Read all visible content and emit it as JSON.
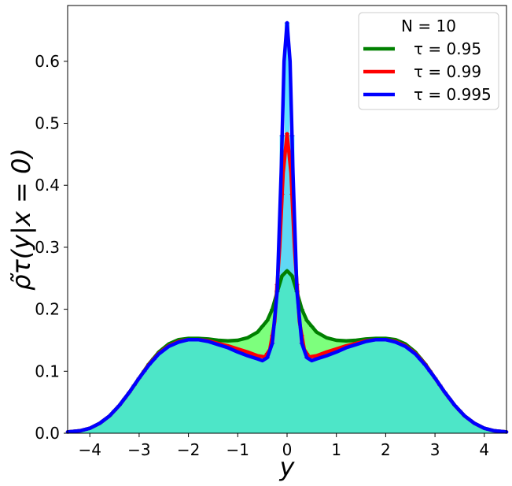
{
  "chart_data": {
    "type": "line",
    "xlabel": "y",
    "ylabel": "ρ̃τ(y|x = 0)",
    "xlim": [
      -4.45,
      4.45
    ],
    "ylim": [
      0.0,
      0.69
    ],
    "xticks": [
      "−4",
      "−3",
      "−2",
      "−1",
      "0",
      "1",
      "2",
      "3",
      "4"
    ],
    "xtick_values": [
      -4,
      -3,
      -2,
      -1,
      0,
      1,
      2,
      3,
      4
    ],
    "yticks": [
      "0.0",
      "0.1",
      "0.2",
      "0.3",
      "0.4",
      "0.5",
      "0.6"
    ],
    "ytick_values": [
      0.0,
      0.1,
      0.2,
      0.3,
      0.4,
      0.5,
      0.6
    ],
    "grid": false,
    "legend": {
      "title": "N = 10",
      "placement": "top-right",
      "entries": [
        {
          "label": "τ = 0.95",
          "color": "#008000"
        },
        {
          "label": "τ = 0.99",
          "color": "#ff0000"
        },
        {
          "label": "τ = 0.995",
          "color": "#0000ff"
        }
      ]
    },
    "series": [
      {
        "name": "τ = 0.95",
        "color": "#008000",
        "x": [
          -4.45,
          -4.2,
          -4.0,
          -3.8,
          -3.6,
          -3.4,
          -3.2,
          -3.0,
          -2.8,
          -2.6,
          -2.4,
          -2.2,
          -2.0,
          -1.8,
          -1.6,
          -1.4,
          -1.2,
          -1.0,
          -0.8,
          -0.6,
          -0.4,
          -0.3,
          -0.2,
          -0.1,
          0.0,
          0.1,
          0.2,
          0.3,
          0.4,
          0.6,
          0.8,
          1.0,
          1.2,
          1.4,
          1.6,
          1.8,
          2.0,
          2.2,
          2.4,
          2.6,
          2.8,
          3.0,
          3.2,
          3.4,
          3.6,
          3.8,
          4.0,
          4.2,
          4.45
        ],
        "y": [
          0.002,
          0.004,
          0.008,
          0.016,
          0.028,
          0.045,
          0.066,
          0.089,
          0.112,
          0.131,
          0.144,
          0.151,
          0.153,
          0.153,
          0.152,
          0.15,
          0.149,
          0.15,
          0.154,
          0.163,
          0.182,
          0.2,
          0.228,
          0.254,
          0.262,
          0.254,
          0.228,
          0.2,
          0.182,
          0.163,
          0.154,
          0.15,
          0.149,
          0.15,
          0.152,
          0.153,
          0.153,
          0.151,
          0.144,
          0.131,
          0.112,
          0.089,
          0.066,
          0.045,
          0.028,
          0.016,
          0.008,
          0.004,
          0.002
        ]
      },
      {
        "name": "τ = 0.99",
        "color": "#ff0000",
        "x": [
          -4.45,
          -4.2,
          -4.0,
          -3.8,
          -3.6,
          -3.4,
          -3.2,
          -3.0,
          -2.8,
          -2.6,
          -2.4,
          -2.2,
          -2.0,
          -1.8,
          -1.6,
          -1.4,
          -1.2,
          -1.0,
          -0.8,
          -0.6,
          -0.45,
          -0.35,
          -0.25,
          -0.15,
          -0.08,
          0.0,
          0.08,
          0.15,
          0.25,
          0.35,
          0.45,
          0.6,
          0.8,
          1.0,
          1.2,
          1.4,
          1.6,
          1.8,
          2.0,
          2.2,
          2.4,
          2.6,
          2.8,
          3.0,
          3.2,
          3.4,
          3.6,
          3.8,
          4.0,
          4.2,
          4.45
        ],
        "y": [
          0.002,
          0.004,
          0.008,
          0.016,
          0.028,
          0.045,
          0.066,
          0.089,
          0.111,
          0.129,
          0.141,
          0.148,
          0.151,
          0.151,
          0.149,
          0.145,
          0.141,
          0.136,
          0.131,
          0.125,
          0.123,
          0.135,
          0.18,
          0.3,
          0.42,
          0.483,
          0.42,
          0.3,
          0.18,
          0.135,
          0.123,
          0.125,
          0.131,
          0.136,
          0.141,
          0.145,
          0.149,
          0.151,
          0.151,
          0.148,
          0.141,
          0.129,
          0.111,
          0.089,
          0.066,
          0.045,
          0.028,
          0.016,
          0.008,
          0.004,
          0.002
        ]
      },
      {
        "name": "τ = 0.995",
        "color": "#0000ff",
        "x": [
          -4.45,
          -4.2,
          -4.0,
          -3.8,
          -3.6,
          -3.4,
          -3.2,
          -3.0,
          -2.8,
          -2.6,
          -2.4,
          -2.2,
          -2.0,
          -1.8,
          -1.6,
          -1.4,
          -1.2,
          -1.0,
          -0.8,
          -0.6,
          -0.5,
          -0.4,
          -0.3,
          -0.2,
          -0.12,
          -0.06,
          0.0,
          0.06,
          0.12,
          0.2,
          0.3,
          0.4,
          0.5,
          0.6,
          0.8,
          1.0,
          1.2,
          1.4,
          1.6,
          1.8,
          2.0,
          2.2,
          2.4,
          2.6,
          2.8,
          3.0,
          3.2,
          3.4,
          3.6,
          3.8,
          4.0,
          4.2,
          4.45
        ],
        "y": [
          0.002,
          0.004,
          0.008,
          0.016,
          0.028,
          0.045,
          0.066,
          0.089,
          0.11,
          0.128,
          0.14,
          0.147,
          0.151,
          0.151,
          0.148,
          0.143,
          0.138,
          0.131,
          0.125,
          0.12,
          0.117,
          0.122,
          0.145,
          0.23,
          0.42,
          0.6,
          0.662,
          0.6,
          0.42,
          0.23,
          0.145,
          0.122,
          0.117,
          0.12,
          0.125,
          0.131,
          0.138,
          0.143,
          0.148,
          0.151,
          0.151,
          0.147,
          0.14,
          0.128,
          0.11,
          0.089,
          0.066,
          0.045,
          0.028,
          0.016,
          0.008,
          0.004,
          0.002
        ]
      }
    ],
    "histogram_fill_colors": {
      "tau_0_95": "#66ff66",
      "tau_0_99": "#ffb0b0",
      "tau_0_995": "#44ddff",
      "common_base": "#4de6c8"
    }
  }
}
